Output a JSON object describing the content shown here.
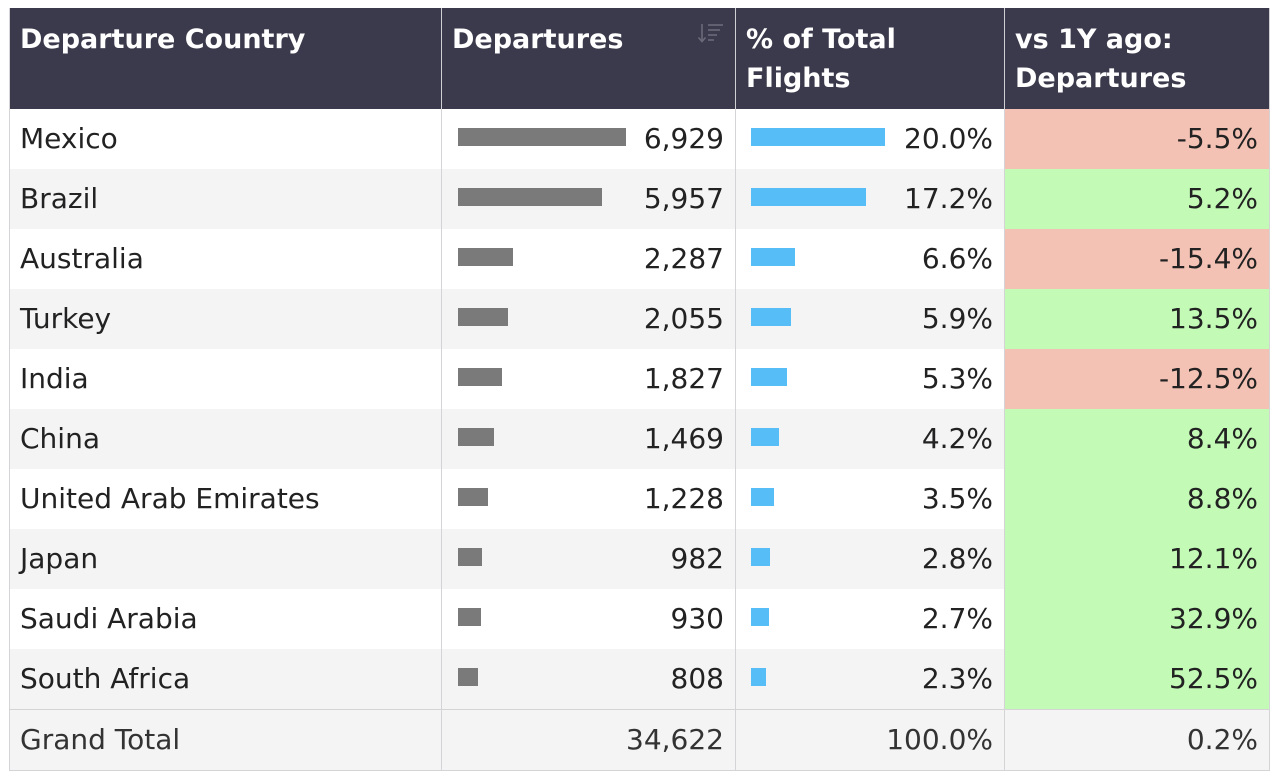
{
  "chart_data": {
    "type": "table",
    "columns": [
      "Departure Country",
      "Departures",
      "% of Total\nFlights",
      "vs 1Y ago:\nDepartures"
    ],
    "rows": [
      {
        "country": "Mexico",
        "departures": 6929,
        "departures_label": "6,929",
        "pct_total": 20.0,
        "pct_total_label": "20.0%",
        "yoy": -5.5,
        "yoy_label": "-5.5%"
      },
      {
        "country": "Brazil",
        "departures": 5957,
        "departures_label": "5,957",
        "pct_total": 17.2,
        "pct_total_label": "17.2%",
        "yoy": 5.2,
        "yoy_label": "5.2%"
      },
      {
        "country": "Australia",
        "departures": 2287,
        "departures_label": "2,287",
        "pct_total": 6.6,
        "pct_total_label": "6.6%",
        "yoy": -15.4,
        "yoy_label": "-15.4%"
      },
      {
        "country": "Turkey",
        "departures": 2055,
        "departures_label": "2,055",
        "pct_total": 5.9,
        "pct_total_label": "5.9%",
        "yoy": 13.5,
        "yoy_label": "13.5%"
      },
      {
        "country": "India",
        "departures": 1827,
        "departures_label": "1,827",
        "pct_total": 5.3,
        "pct_total_label": "5.3%",
        "yoy": -12.5,
        "yoy_label": "-12.5%"
      },
      {
        "country": "China",
        "departures": 1469,
        "departures_label": "1,469",
        "pct_total": 4.2,
        "pct_total_label": "4.2%",
        "yoy": 8.4,
        "yoy_label": "8.4%"
      },
      {
        "country": "United Arab Emirates",
        "departures": 1228,
        "departures_label": "1,228",
        "pct_total": 3.5,
        "pct_total_label": "3.5%",
        "yoy": 8.8,
        "yoy_label": "8.8%"
      },
      {
        "country": "Japan",
        "departures": 982,
        "departures_label": "982",
        "pct_total": 2.8,
        "pct_total_label": "2.8%",
        "yoy": 12.1,
        "yoy_label": "12.1%"
      },
      {
        "country": "Saudi Arabia",
        "departures": 930,
        "departures_label": "930",
        "pct_total": 2.7,
        "pct_total_label": "2.7%",
        "yoy": 32.9,
        "yoy_label": "32.9%"
      },
      {
        "country": "South Africa",
        "departures": 808,
        "departures_label": "808",
        "pct_total": 2.3,
        "pct_total_label": "2.3%",
        "yoy": 52.5,
        "yoy_label": "52.5%"
      }
    ],
    "total": {
      "label": "Grand Total",
      "departures": 34622,
      "departures_label": "34,622",
      "pct_total": 100.0,
      "pct_total_label": "100.0%",
      "yoy": 0.2,
      "yoy_label": "0.2%"
    },
    "sorted_by": "Departures",
    "sort_order": "descending",
    "bar_max": {
      "departures": 6929,
      "pct_total": 20.0
    }
  },
  "colors": {
    "header_bg": "#3b3a4c",
    "header_text": "#ffffff",
    "row_even_bg": "#ffffff",
    "row_odd_bg": "#f4f4f5",
    "total_bg": "#f4f4f5",
    "departures_bar": "#7a7a7a",
    "pct_bar": "#57bdf6",
    "negative_bg": "#f4c2b4",
    "positive_bg": "#c2fab6",
    "text": "#222222"
  },
  "icons": {
    "sort": "sort-descending-icon"
  }
}
